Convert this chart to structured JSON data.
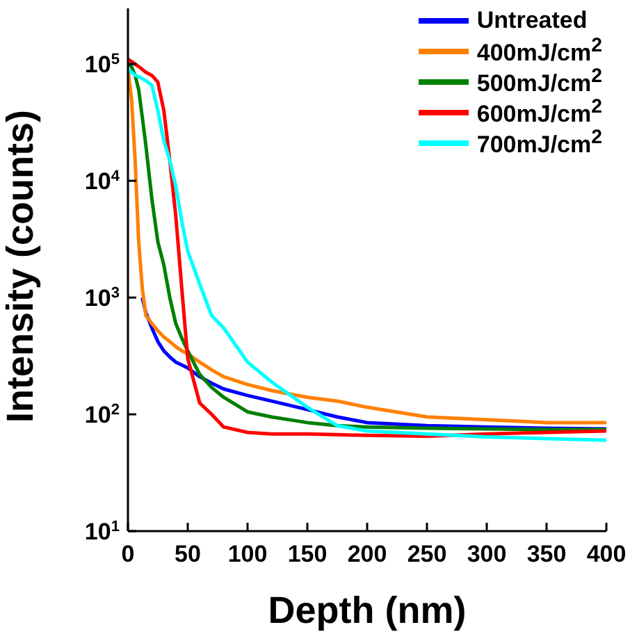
{
  "chart_data": {
    "type": "line",
    "xlabel": "Depth (nm)",
    "ylabel": "Intensity (counts)",
    "log": "y",
    "xlim": [
      0,
      400
    ],
    "xticks": [
      0,
      50,
      100,
      150,
      200,
      250,
      300,
      350,
      400
    ],
    "ylim": [
      10,
      300000
    ],
    "yticks": [
      {
        "value": 10,
        "label": "10$^{1}$"
      },
      {
        "value": 100,
        "label": "10$^{2}$"
      },
      {
        "value": 1000,
        "label": "10$^{3}$"
      },
      {
        "value": 10000,
        "label": "10$^{4}$"
      },
      {
        "value": 100000,
        "label": "10$^{5}$"
      }
    ],
    "legend": "top right",
    "marker": "none",
    "line_style": "solid",
    "grid": false,
    "x": [
      0,
      3,
      6,
      9,
      12,
      15,
      20,
      25,
      30,
      35,
      40,
      45,
      50,
      60,
      70,
      80,
      100,
      120,
      150,
      175,
      200,
      250,
      300,
      350,
      400
    ],
    "series": [
      {
        "name": "Untreated",
        "color": "#0000ff",
        "values": [
          null,
          null,
          null,
          null,
          1000,
          740,
          550,
          420,
          350,
          310,
          280,
          265,
          250,
          210,
          185,
          165,
          145,
          130,
          110,
          95,
          85,
          80,
          78,
          76,
          75
        ]
      },
      {
        "name": "400mJ/cm$^{2}$",
        "color": "#ff8000",
        "values": [
          90000,
          50000,
          15000,
          3000,
          1200,
          700,
          600,
          520,
          460,
          420,
          380,
          350,
          330,
          280,
          240,
          210,
          180,
          160,
          140,
          130,
          115,
          95,
          90,
          85,
          85
        ]
      },
      {
        "name": "500mJ/cm$^{2}$",
        "color": "#008000",
        "values": [
          100000,
          95000,
          80000,
          60000,
          35000,
          20000,
          7000,
          3000,
          1900,
          1000,
          600,
          450,
          350,
          220,
          170,
          140,
          105,
          95,
          85,
          80,
          78,
          76,
          75,
          74,
          74
        ]
      },
      {
        "name": "600mJ/cm$^{2}$",
        "color": "#ff0000",
        "values": [
          110000,
          105000,
          100000,
          95000,
          90000,
          85000,
          80000,
          70000,
          40000,
          15000,
          5000,
          1200,
          300,
          125,
          100,
          78,
          70,
          68,
          68,
          67,
          66,
          65,
          68,
          70,
          72
        ]
      },
      {
        "name": "700mJ/cm$^{2}$",
        "color": "#00ffff",
        "values": [
          90000,
          85000,
          80000,
          78000,
          75000,
          72000,
          66000,
          40000,
          22000,
          15000,
          9000,
          4500,
          2500,
          1300,
          700,
          550,
          280,
          190,
          115,
          80,
          72,
          68,
          64,
          62,
          60
        ]
      }
    ]
  }
}
